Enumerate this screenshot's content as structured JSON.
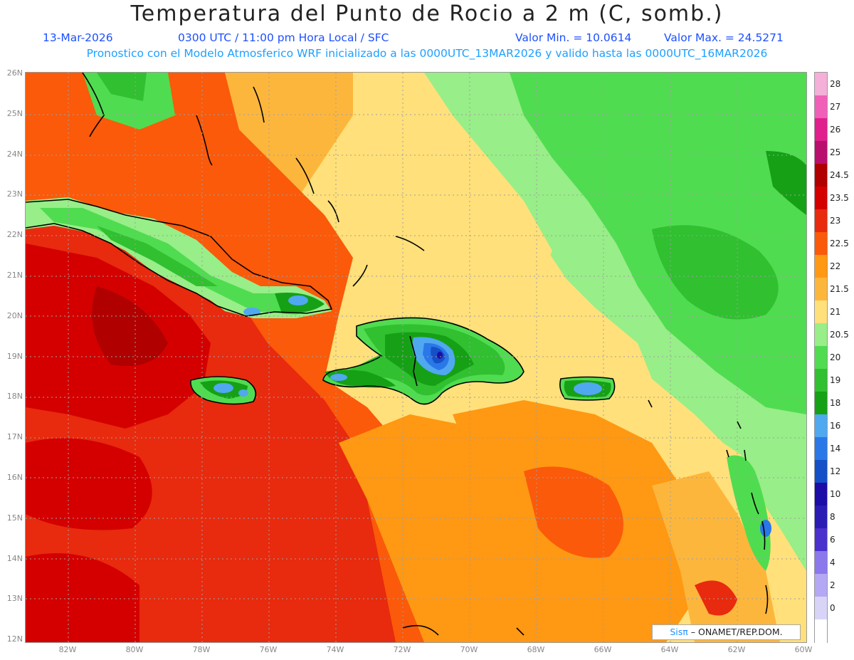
{
  "title": "Temperatura del Punto de Rocio a 2 m (C, somb.)",
  "date": "13-Mar-2026",
  "time_info": "0300 UTC / 11:00 pm Hora Local / SFC",
  "min_label": "Valor Min. = 10.0614",
  "max_label": "Valor Max. = 24.5271",
  "model_info": "Pronostico con el Modelo Atmosferico WRF inicializado a las 0000UTC_13MAR2026 y valido hasta las  0000UTC_16MAR2026",
  "lat_labels": [
    "26N",
    "25N",
    "24N",
    "23N",
    "22N",
    "21N",
    "20N",
    "19N",
    "18N",
    "17N",
    "16N",
    "15N",
    "14N",
    "13N",
    "12N"
  ],
  "lon_labels": [
    "82W",
    "80W",
    "78W",
    "76W",
    "74W",
    "72W",
    "70W",
    "68W",
    "66W",
    "64W",
    "62W",
    "60W"
  ],
  "legend": [
    {
      "label": "28",
      "color": "#f4b0d8"
    },
    {
      "label": "27",
      "color": "#f060b8"
    },
    {
      "label": "26",
      "color": "#e0208c"
    },
    {
      "label": "25",
      "color": "#b8106c"
    },
    {
      "label": "24.5",
      "color": "#b00000"
    },
    {
      "label": "23.5",
      "color": "#d40000"
    },
    {
      "label": "23",
      "color": "#e82a0e"
    },
    {
      "label": "22.5",
      "color": "#fa5a0a"
    },
    {
      "label": "22",
      "color": "#ff9812"
    },
    {
      "label": "21.5",
      "color": "#fdb63c"
    },
    {
      "label": "21",
      "color": "#ffe07a"
    },
    {
      "label": "20.5",
      "color": "#98ee88"
    },
    {
      "label": "20",
      "color": "#50dc50"
    },
    {
      "label": "19",
      "color": "#30c030"
    },
    {
      "label": "18",
      "color": "#16a016"
    },
    {
      "label": "16",
      "color": "#50a8f0"
    },
    {
      "label": "14",
      "color": "#2a78e8"
    },
    {
      "label": "12",
      "color": "#1450c8"
    },
    {
      "label": "10",
      "color": "#1c0ca8"
    },
    {
      "label": "8",
      "color": "#2a1cb4"
    },
    {
      "label": "6",
      "color": "#4a30cc"
    },
    {
      "label": "4",
      "color": "#8a78ec"
    },
    {
      "label": "2",
      "color": "#b4a8f4"
    },
    {
      "label": "0",
      "color": "#d8d4f8"
    },
    {
      "label": "",
      "color": "#ffffff"
    }
  ],
  "credit_brand": "Sisπ",
  "credit_text": " – ONAMET/REP.DOM."
}
